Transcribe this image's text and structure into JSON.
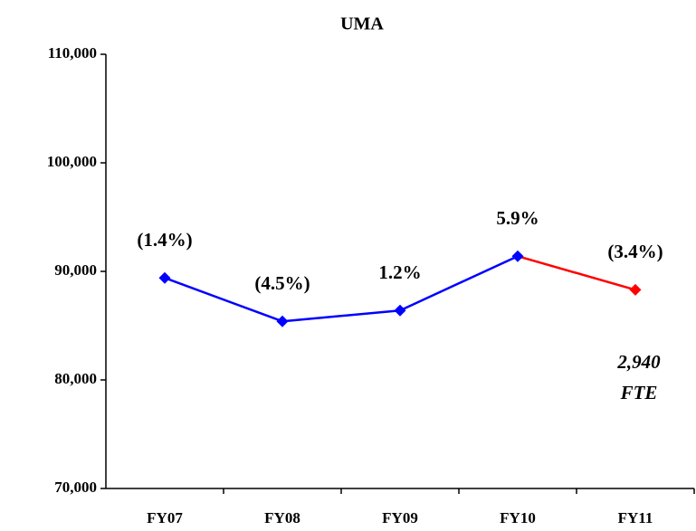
{
  "chart_data": {
    "type": "line",
    "title": "UMA",
    "categories": [
      "FY07",
      "FY08",
      "FY09",
      "FY10",
      "FY11"
    ],
    "series": [
      {
        "values": [
          89400,
          85400,
          86400,
          91400,
          88300
        ],
        "segment_colors": [
          "#0000ff",
          "#0000ff",
          "#0000ff",
          "#ff0000"
        ],
        "marker_colors": [
          "#0000ff",
          "#0000ff",
          "#0000ff",
          "#0000ff",
          "#ff0000"
        ],
        "change_labels": [
          "(1.4%)",
          "(4.5%)",
          "1.2%",
          "5.9%",
          "(3.4%)"
        ]
      }
    ],
    "ylim": [
      70000,
      110000
    ],
    "yticks": [
      {
        "value": 70000,
        "label": "70,000"
      },
      {
        "value": 80000,
        "label": "80,000"
      },
      {
        "value": 90000,
        "label": "90,000"
      },
      {
        "value": 100000,
        "label": "100,000"
      },
      {
        "value": 110000,
        "label": "110,000"
      }
    ],
    "grid": false,
    "annotation": [
      "2,940",
      "FTE"
    ]
  }
}
